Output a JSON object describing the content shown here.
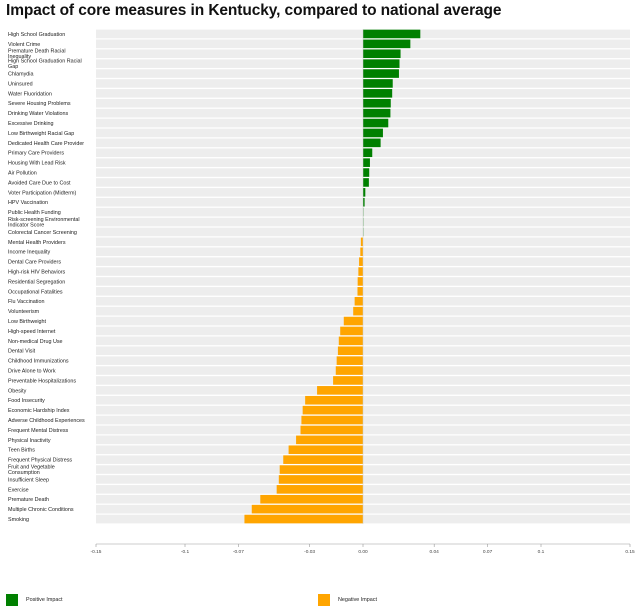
{
  "chart_data": {
    "type": "bar",
    "orientation": "horizontal",
    "title": "Impact of core measures in Kentucky, compared to national average",
    "xlabel": "",
    "ylabel": "",
    "xlim": [
      -0.15,
      0.15
    ],
    "x_ticks": [
      -0.15,
      -0.1,
      -0.07,
      -0.03,
      0.0,
      0.04,
      0.07,
      0.1,
      0.15
    ],
    "x_tick_labels": [
      "-0.15",
      "-0.1",
      "-0.07",
      "-0.03",
      "0.00",
      "0.04",
      "0.07",
      "0.1",
      "0.15"
    ],
    "grid": false,
    "legend_position": "bottom",
    "colors": {
      "positive": "#008000",
      "negative": "#ffa500",
      "row_background": "#ededed"
    },
    "legend": [
      {
        "label": "Positive Impact",
        "color": "#008000"
      },
      {
        "label": "Negative Impact",
        "color": "#ffa500"
      }
    ],
    "categories": [
      [
        "High School Graduation"
      ],
      [
        "Violent Crime"
      ],
      [
        "Premature Death Racial",
        "Inequality"
      ],
      [
        "High School Graduation Racial",
        "Gap"
      ],
      [
        "Chlamydia"
      ],
      [
        "Uninsured"
      ],
      [
        "Water Fluoridation"
      ],
      [
        "Severe Housing Problems"
      ],
      [
        "Drinking Water Violations"
      ],
      [
        "Excessive Drinking"
      ],
      [
        "Low Birthweight Racial Gap"
      ],
      [
        "Dedicated Health Care Provider"
      ],
      [
        "Primary Care Providers"
      ],
      [
        "Housing With Lead Risk"
      ],
      [
        "Air Pollution"
      ],
      [
        "Avoided Care Due to Cost"
      ],
      [
        "Voter Participation (Midterm)"
      ],
      [
        "HPV Vaccination"
      ],
      [
        "Public Health Funding"
      ],
      [
        "Risk-screening Environmental",
        "Indicator Score"
      ],
      [
        "Colorectal Cancer Screening"
      ],
      [
        "Mental Health Providers"
      ],
      [
        "Income Inequality"
      ],
      [
        "Dental Care Providers"
      ],
      [
        "High-risk HIV Behaviors"
      ],
      [
        "Residential Segregation"
      ],
      [
        "Occupational Fatalities"
      ],
      [
        "Flu Vaccination"
      ],
      [
        "Volunteerism"
      ],
      [
        "Low Birthweight"
      ],
      [
        "High-speed Internet"
      ],
      [
        "Non-medical Drug Use"
      ],
      [
        "Dental Visit"
      ],
      [
        "Childhood Immunizations"
      ],
      [
        "Drive Alone to Work"
      ],
      [
        "Preventable Hospitalizations"
      ],
      [
        "Obesity"
      ],
      [
        "Food Insecurity"
      ],
      [
        "Economic Hardship Index"
      ],
      [
        "Adverse Childhood Experiences"
      ],
      [
        "Frequent Mental Distress"
      ],
      [
        "Physical Inactivity"
      ],
      [
        "Teen Births"
      ],
      [
        "Frequent Physical Distress"
      ],
      [
        "Fruit and Vegetable",
        "Consumption"
      ],
      [
        "Insufficient Sleep"
      ],
      [
        "Exercise"
      ],
      [
        "Premature Death"
      ],
      [
        "Multiple Chronic Conditions"
      ],
      [
        "Smoking"
      ]
    ],
    "values": [
      0.0322,
      0.0266,
      0.0211,
      0.0205,
      0.0202,
      0.0167,
      0.0164,
      0.0156,
      0.0154,
      0.0142,
      0.0112,
      0.0099,
      0.0052,
      0.0039,
      0.0035,
      0.0033,
      0.0013,
      0.0009,
      0.0002,
      0.0001,
      0.0001,
      -0.0012,
      -0.0015,
      -0.0022,
      -0.0026,
      -0.003,
      -0.0031,
      -0.0047,
      -0.0055,
      -0.0108,
      -0.0128,
      -0.0136,
      -0.0141,
      -0.0148,
      -0.0153,
      -0.0168,
      -0.0258,
      -0.0325,
      -0.0339,
      -0.0346,
      -0.0351,
      -0.0376,
      -0.0418,
      -0.0448,
      -0.0468,
      -0.0473,
      -0.0485,
      -0.0577,
      -0.0625,
      -0.0666
    ]
  }
}
